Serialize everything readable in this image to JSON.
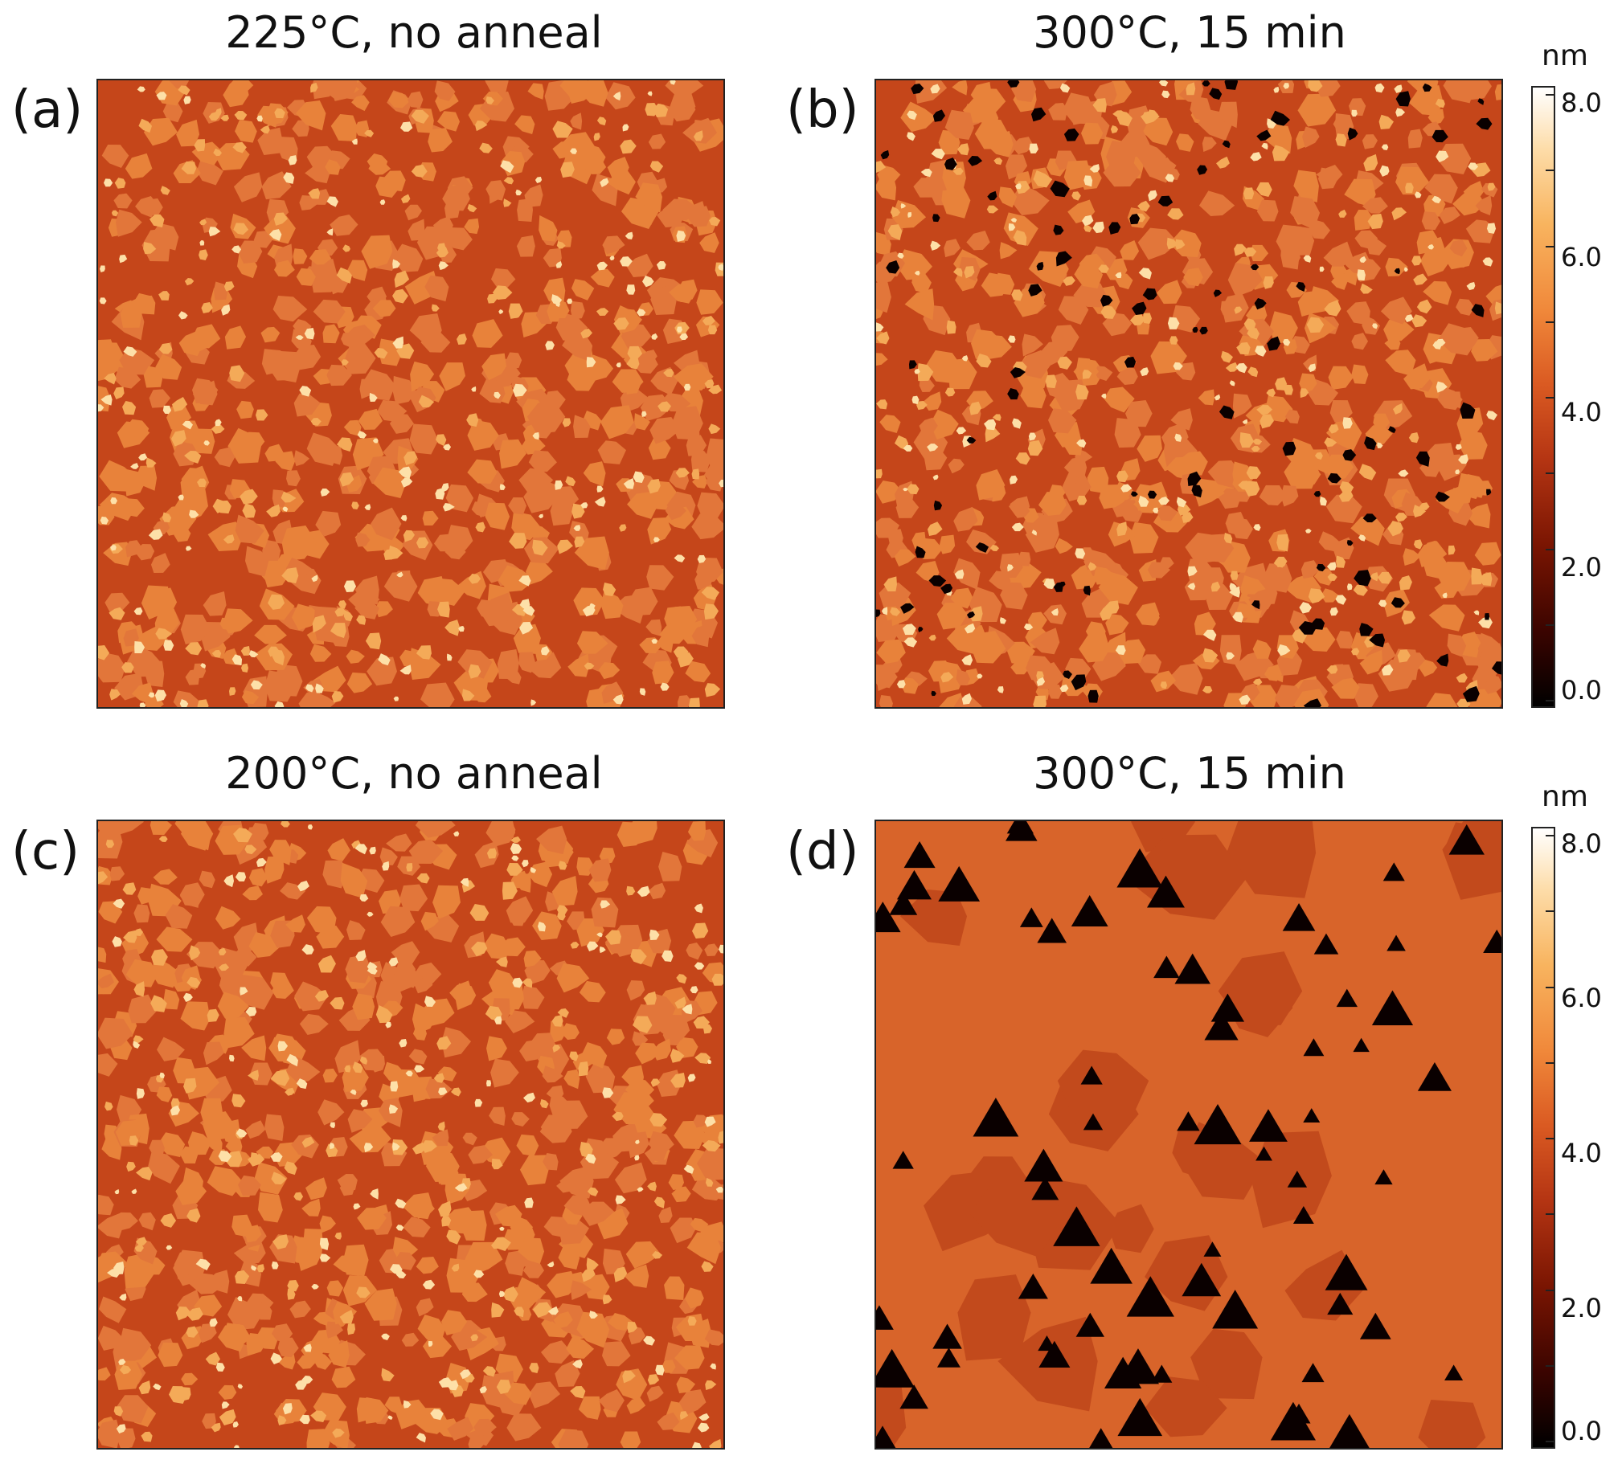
{
  "panels": [
    {
      "label": "(a)",
      "title": "225°C, no anneal",
      "morphology": "islands"
    },
    {
      "label": "(b)",
      "title": "300°C, 15 min",
      "morphology": "islands-pits"
    },
    {
      "label": "(c)",
      "title": "200°C, no anneal",
      "morphology": "islands"
    },
    {
      "label": "(d)",
      "title": "300°C, 15 min",
      "morphology": "terraces-triangles"
    }
  ],
  "colorbars": [
    {
      "unit": "nm",
      "ticks": [
        "8.0",
        "6.0",
        "4.0",
        "2.0",
        "0.0"
      ],
      "range": [
        0,
        8
      ]
    },
    {
      "unit": "nm",
      "ticks": [
        "8.0",
        "6.0",
        "4.0",
        "2.0",
        "0.0"
      ],
      "range": [
        0,
        8
      ]
    }
  ],
  "colors": {
    "background": "#c5461a",
    "island": "#e8823a",
    "bright": "#fde0a8",
    "pit": "#0a0000",
    "terrace": "#d8642a"
  }
}
